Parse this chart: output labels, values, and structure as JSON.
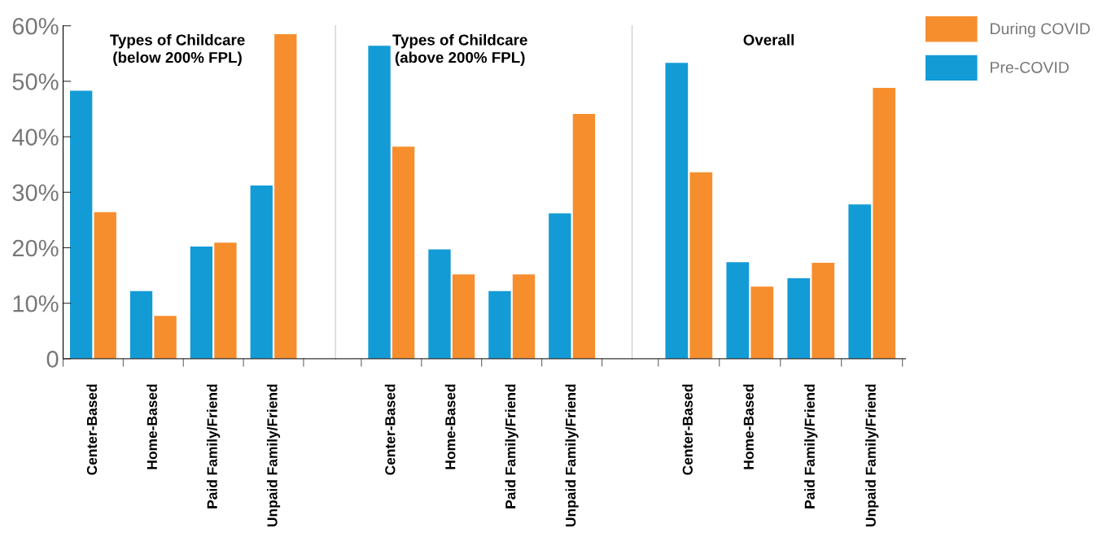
{
  "chart_data": [
    {
      "type": "bar",
      "title": "Types of Childcare\n(below 200% FPL)",
      "categories": [
        "Center-Based",
        "Home-Based",
        "Paid Family/Friend",
        "Unpaid Family/Friend"
      ],
      "series": [
        {
          "color": "#139bd6",
          "values": [
            48.3,
            12.2,
            20.2,
            31.2
          ]
        },
        {
          "color": "#f68e2e",
          "values": [
            26.4,
            7.7,
            20.9,
            58.5
          ]
        }
      ],
      "ylim": [
        0,
        60
      ],
      "yticks": [
        0,
        {
          "value": 10,
          "label": "10%"
        },
        {
          "value": 20,
          "label": "20%"
        },
        {
          "value": 30,
          "label": "30%"
        },
        {
          "value": 40,
          "label": "40%"
        },
        {
          "value": 50,
          "label": "50%"
        },
        {
          "value": 60,
          "label": "60%"
        }
      ],
      "grid": false,
      "legend": false
    },
    {
      "type": "bar",
      "title": "Types of Childcare\n(above 200% FPL)",
      "categories": [
        "Center-Based",
        "Home-Based",
        "Paid Family/Friend",
        "Unpaid Family/Friend"
      ],
      "series": [
        {
          "color": "#139bd6",
          "values": [
            56.4,
            19.7,
            12.2,
            26.2
          ]
        },
        {
          "color": "#f68e2e",
          "values": [
            38.2,
            15.2,
            15.2,
            44.1
          ]
        }
      ],
      "ylim": [
        0,
        60
      ],
      "tick_labels": "x",
      "grid": false,
      "legend": false
    },
    {
      "type": "bar",
      "title": "Overall",
      "categories": [
        "Center-Based",
        "Home-Based",
        "Paid Family/Friend",
        "Unpaid Family/Friend"
      ],
      "series": [
        {
          "name": "Pre-COVID",
          "color": "#139bd6",
          "values": [
            53.3,
            17.4,
            14.5,
            27.8
          ]
        },
        {
          "name": "During COVID",
          "color": "#f68e2e",
          "values": [
            33.6,
            13.0,
            17.3,
            48.8
          ]
        }
      ],
      "ylim": [
        0,
        60
      ],
      "tick_labels": "x",
      "grid": false,
      "legend": "top right"
    }
  ]
}
